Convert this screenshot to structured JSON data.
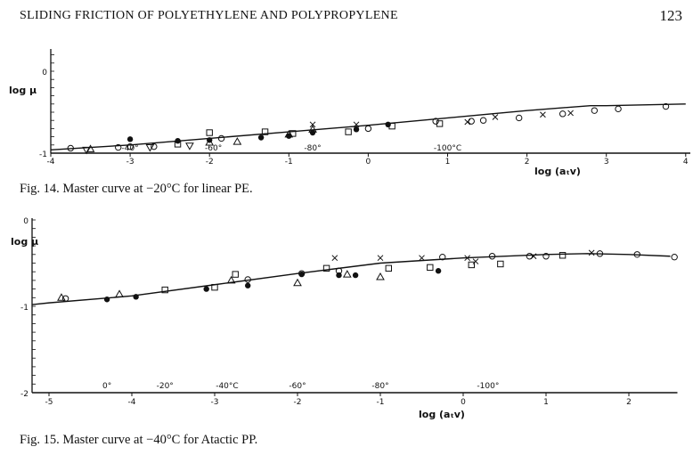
{
  "header": {
    "running_title": "SLIDING FRICTION OF POLYETHYLENE AND POLYPROPYLENE",
    "page_number": "123"
  },
  "chart_data": [
    {
      "type": "scatter",
      "caption": "Fig. 14. Master curve at −20°C for linear PE.",
      "xlabel": "log (aₜv)",
      "ylabel": "log μ",
      "xlim": [
        -4,
        4
      ],
      "ylim": [
        -1,
        0.2
      ],
      "x_ticks": [
        "-4",
        "-3",
        "-2",
        "-1",
        "0",
        "1",
        "2",
        "3",
        "4"
      ],
      "y_ticks": [
        "0",
        "-1"
      ],
      "temperature_labels": [
        {
          "x": -3.0,
          "text": "-40°"
        },
        {
          "x": -1.95,
          "text": "-60°"
        },
        {
          "x": -0.7,
          "text": "-80°"
        },
        {
          "x": 1.0,
          "text": "-100°C"
        }
      ],
      "curve": {
        "x": [
          -4,
          -3,
          -2,
          -1,
          0,
          1,
          2,
          2.8,
          3,
          4
        ],
        "y": [
          -0.96,
          -0.9,
          -0.82,
          -0.74,
          -0.66,
          -0.57,
          -0.48,
          -0.42,
          -0.42,
          -0.4
        ]
      },
      "points": [
        {
          "m": "o",
          "x": -3.75,
          "y": -0.94
        },
        {
          "m": "v",
          "x": -3.55,
          "y": -0.96
        },
        {
          "m": "^",
          "x": -3.5,
          "y": -0.95
        },
        {
          "m": "o",
          "x": -3.15,
          "y": -0.93
        },
        {
          "m": "●",
          "x": -3.0,
          "y": -0.83
        },
        {
          "m": "o",
          "x": -3.0,
          "y": -0.92
        },
        {
          "m": "v",
          "x": -2.75,
          "y": -0.93
        },
        {
          "m": "o",
          "x": -2.7,
          "y": -0.92
        },
        {
          "m": "●",
          "x": -2.4,
          "y": -0.85
        },
        {
          "m": "□",
          "x": -2.4,
          "y": -0.89
        },
        {
          "m": "v",
          "x": -2.25,
          "y": -0.91
        },
        {
          "m": "●",
          "x": -2.0,
          "y": -0.84
        },
        {
          "m": "□",
          "x": -2.0,
          "y": -0.75
        },
        {
          "m": "^",
          "x": -2.0,
          "y": -0.87
        },
        {
          "m": "o",
          "x": -1.85,
          "y": -0.82
        },
        {
          "m": "^",
          "x": -1.65,
          "y": -0.86
        },
        {
          "m": "●",
          "x": -1.35,
          "y": -0.81
        },
        {
          "m": "□",
          "x": -1.3,
          "y": -0.74
        },
        {
          "m": "^",
          "x": -1.0,
          "y": -0.77
        },
        {
          "m": "●",
          "x": -1.0,
          "y": -0.79
        },
        {
          "m": "□",
          "x": -0.95,
          "y": -0.76
        },
        {
          "m": "x",
          "x": -0.7,
          "y": -0.65
        },
        {
          "m": "^",
          "x": -0.7,
          "y": -0.71
        },
        {
          "m": "●",
          "x": -0.7,
          "y": -0.75
        },
        {
          "m": "□",
          "x": -0.25,
          "y": -0.74
        },
        {
          "m": "x",
          "x": -0.15,
          "y": -0.65
        },
        {
          "m": "●",
          "x": -0.15,
          "y": -0.71
        },
        {
          "m": "o",
          "x": 0.0,
          "y": -0.7
        },
        {
          "m": "●",
          "x": 0.25,
          "y": -0.65
        },
        {
          "m": "□",
          "x": 0.3,
          "y": -0.67
        },
        {
          "m": "o",
          "x": 0.85,
          "y": -0.61
        },
        {
          "m": "□",
          "x": 0.9,
          "y": -0.64
        },
        {
          "m": "x",
          "x": 1.25,
          "y": -0.62
        },
        {
          "m": "o",
          "x": 1.3,
          "y": -0.61
        },
        {
          "m": "o",
          "x": 1.45,
          "y": -0.6
        },
        {
          "m": "x",
          "x": 1.6,
          "y": -0.56
        },
        {
          "m": "o",
          "x": 1.9,
          "y": -0.57
        },
        {
          "m": "x",
          "x": 2.2,
          "y": -0.53
        },
        {
          "m": "o",
          "x": 2.45,
          "y": -0.52
        },
        {
          "m": "x",
          "x": 2.55,
          "y": -0.51
        },
        {
          "m": "o",
          "x": 2.85,
          "y": -0.48
        },
        {
          "m": "o",
          "x": 3.15,
          "y": -0.46
        },
        {
          "m": "o",
          "x": 3.75,
          "y": -0.43
        }
      ]
    },
    {
      "type": "scatter",
      "caption": "Fig. 15. Master curve at −40°C for Atactic PP.",
      "xlabel": "log (aₜv)",
      "ylabel": "log μ",
      "xlim": [
        -5,
        2.5
      ],
      "ylim": [
        -2,
        0
      ],
      "x_ticks": [
        "-5",
        "-4",
        "-3",
        "-2",
        "-1",
        "0",
        "1",
        "2"
      ],
      "y_ticks": [
        "0",
        "-1",
        "-2"
      ],
      "temperature_labels": [
        {
          "x": -4.3,
          "text": "0°"
        },
        {
          "x": -3.6,
          "text": "-20°"
        },
        {
          "x": -2.85,
          "text": "-40°C"
        },
        {
          "x": -2.0,
          "text": "-60°"
        },
        {
          "x": -1.0,
          "text": "-80°"
        },
        {
          "x": 0.3,
          "text": "-100°"
        }
      ],
      "curve": {
        "x": [
          -5.2,
          -5,
          -4,
          -3,
          -2,
          -1,
          0,
          1,
          1.5,
          2,
          2.5
        ],
        "y": [
          -0.98,
          -0.96,
          -0.88,
          -0.75,
          -0.62,
          -0.5,
          -0.44,
          -0.4,
          -0.39,
          -0.4,
          -0.42
        ]
      },
      "points": [
        {
          "m": "^",
          "x": -4.85,
          "y": -0.9
        },
        {
          "m": "o",
          "x": -4.8,
          "y": -0.91
        },
        {
          "m": "●",
          "x": -4.3,
          "y": -0.92
        },
        {
          "m": "^",
          "x": -4.15,
          "y": -0.86
        },
        {
          "m": "●",
          "x": -3.95,
          "y": -0.89
        },
        {
          "m": "□",
          "x": -3.6,
          "y": -0.81
        },
        {
          "m": "●",
          "x": -3.1,
          "y": -0.8
        },
        {
          "m": "□",
          "x": -3.0,
          "y": -0.78
        },
        {
          "m": "^",
          "x": -2.8,
          "y": -0.7
        },
        {
          "m": "□",
          "x": -2.75,
          "y": -0.63
        },
        {
          "m": "o",
          "x": -2.6,
          "y": -0.69
        },
        {
          "m": "●",
          "x": -2.6,
          "y": -0.76
        },
        {
          "m": "^",
          "x": -2.0,
          "y": -0.73
        },
        {
          "m": "o",
          "x": -1.95,
          "y": -0.62
        },
        {
          "m": "●",
          "x": -1.95,
          "y": -0.63
        },
        {
          "m": "□",
          "x": -1.65,
          "y": -0.56
        },
        {
          "m": "x",
          "x": -1.55,
          "y": -0.44
        },
        {
          "m": "o",
          "x": -1.5,
          "y": -0.59
        },
        {
          "m": "●",
          "x": -1.5,
          "y": -0.64
        },
        {
          "m": "^",
          "x": -1.4,
          "y": -0.63
        },
        {
          "m": "●",
          "x": -1.3,
          "y": -0.64
        },
        {
          "m": "x",
          "x": -1.0,
          "y": -0.44
        },
        {
          "m": "^",
          "x": -1.0,
          "y": -0.66
        },
        {
          "m": "□",
          "x": -0.9,
          "y": -0.56
        },
        {
          "m": "x",
          "x": -0.5,
          "y": -0.44
        },
        {
          "m": "□",
          "x": -0.4,
          "y": -0.55
        },
        {
          "m": "o",
          "x": -0.25,
          "y": -0.43
        },
        {
          "m": "●",
          "x": -0.3,
          "y": -0.59
        },
        {
          "m": "x",
          "x": 0.05,
          "y": -0.44
        },
        {
          "m": "□",
          "x": 0.1,
          "y": -0.52
        },
        {
          "m": "o",
          "x": 0.35,
          "y": -0.42
        },
        {
          "m": "x",
          "x": 0.15,
          "y": -0.48
        },
        {
          "m": "□",
          "x": 0.45,
          "y": -0.51
        },
        {
          "m": "o",
          "x": 0.8,
          "y": -0.42
        },
        {
          "m": "x",
          "x": 0.85,
          "y": -0.42
        },
        {
          "m": "□",
          "x": 1.2,
          "y": -0.41
        },
        {
          "m": "o",
          "x": 1.0,
          "y": -0.42
        },
        {
          "m": "x",
          "x": 1.55,
          "y": -0.38
        },
        {
          "m": "o",
          "x": 1.65,
          "y": -0.39
        },
        {
          "m": "o",
          "x": 2.1,
          "y": -0.4
        },
        {
          "m": "o",
          "x": 2.55,
          "y": -0.43
        }
      ]
    }
  ]
}
